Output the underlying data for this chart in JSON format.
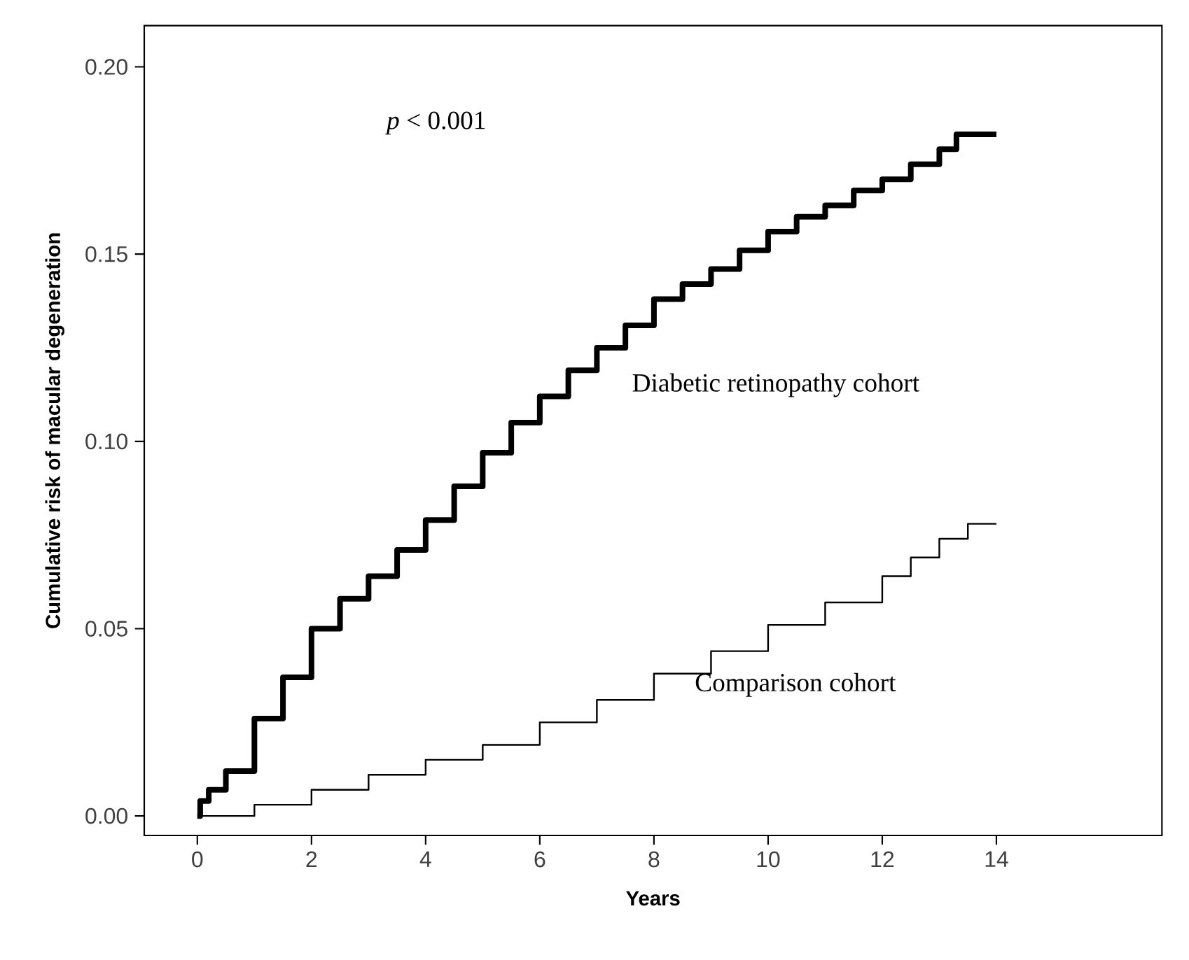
{
  "chart_data": {
    "type": "step",
    "xlabel": "Years",
    "ylabel": "Cumulative risk of macular degeneration",
    "xlim": [
      -0.93,
      16.9
    ],
    "ylim": [
      -0.0052,
      0.211
    ],
    "xticks": [
      0,
      2,
      4,
      6,
      8,
      10,
      12,
      14
    ],
    "yticks": [
      {
        "value": 0,
        "label": "0.00"
      },
      {
        "value": 0.05,
        "label": "0.05"
      },
      {
        "value": 0.1,
        "label": "0.10"
      },
      {
        "value": 0.15,
        "label": "0.15"
      },
      {
        "value": 0.2,
        "label": "0.20"
      }
    ],
    "grid": false,
    "legend": false,
    "annotations": [
      "*p* < 0.001"
    ],
    "series": [
      {
        "name": "Diabetic retinopathy cohort",
        "color": "#000000",
        "x": [
          0,
          0.05,
          0.2,
          0.5,
          1,
          1.5,
          2,
          2.5,
          3,
          3.5,
          4,
          4.5,
          5,
          5.5,
          6,
          6.5,
          7,
          7.5,
          8,
          8.5,
          9,
          9.5,
          10,
          10.5,
          11,
          11.5,
          12,
          12.5,
          13,
          13.3,
          14
        ],
        "values": [
          0.0,
          0.004,
          0.007,
          0.012,
          0.026,
          0.037,
          0.05,
          0.058,
          0.064,
          0.071,
          0.079,
          0.088,
          0.097,
          0.105,
          0.112,
          0.119,
          0.125,
          0.131,
          0.138,
          0.142,
          0.146,
          0.151,
          0.156,
          0.16,
          0.163,
          0.167,
          0.17,
          0.174,
          0.178,
          0.182,
          0.182
        ]
      },
      {
        "name": "Comparison cohort",
        "color": "#000000",
        "x": [
          0,
          1,
          2,
          3,
          4,
          5,
          6,
          7,
          8,
          9,
          10,
          11,
          12,
          12.5,
          13,
          13.5,
          14
        ],
        "values": [
          0,
          0.003,
          0.007,
          0.011,
          0.015,
          0.019,
          0.025,
          0.031,
          0.038,
          0.044,
          0.051,
          0.057,
          0.064,
          0.069,
          0.074,
          0.078,
          0.078
        ]
      }
    ]
  }
}
